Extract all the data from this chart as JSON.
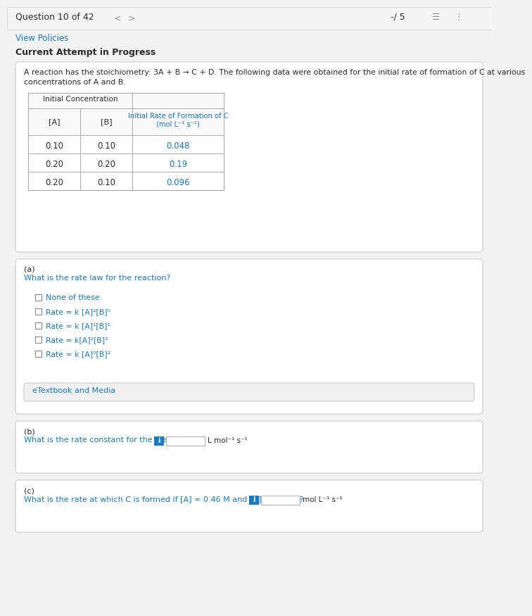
{
  "bg_color": "#f2f2f2",
  "card_color": "#ffffff",
  "border_color": "#cccccc",
  "blue_color": "#1a7abf",
  "blue_link": "#1a7abf",
  "dark_text": "#2b2b2b",
  "gray_text": "#888888",
  "question_header": "Question 10 of 42",
  "score": "-/ 5",
  "view_policies": "View Policies",
  "current_attempt": "Current Attempt in Progress",
  "prob_line1": "A reaction has the stoichiometry: 3A + B → C + D. The following data were obtained for the initial rate of formation of C at various",
  "prob_line2": "concentrations of A and B.",
  "table_header1": "Initial Concentration",
  "table_header2_line1": "Initial Rate of Formation of C",
  "table_header2_line2": "(mol L⁻¹ s⁻¹)",
  "col_a": "[A]",
  "col_b": "[B]",
  "table_data": [
    [
      "0.10",
      "0.10",
      "0.048"
    ],
    [
      "0.20",
      "0.20",
      "0.19"
    ],
    [
      "0.20",
      "0.10",
      "0.096"
    ]
  ],
  "part_a_label": "(a)",
  "part_a_q": "What is the rate law for the reaction?",
  "choices": [
    "None of these.",
    "Rate = k [A]²[B]⁰",
    "Rate = k [A]¹[B]¹",
    "Rate = k[A]²[B]²",
    "Rate = k [A]⁰[B]²"
  ],
  "etextbook": "eTextbook and Media",
  "part_b_label": "(b)",
  "part_b_q": "What is the rate constant for the reaction?",
  "part_b_unit": "L mol⁻¹ s⁻¹",
  "part_c_label": "(c)",
  "part_c_q": "What is the rate at which C is formed if [A] = 0.46 M and [B] = 0.50 M?",
  "part_c_unit": "mol L⁻¹ s⁻¹"
}
